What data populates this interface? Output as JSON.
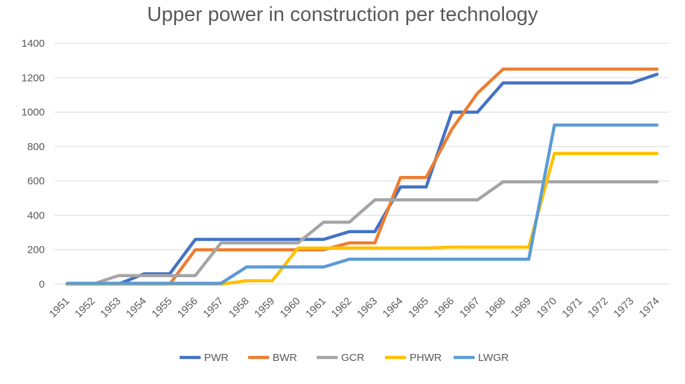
{
  "chart_data": {
    "type": "line",
    "title": "Upper power in construction per technology",
    "xlabel": "",
    "ylabel": "",
    "ylim": [
      0,
      1400
    ],
    "yticks": [
      0,
      200,
      400,
      600,
      800,
      1000,
      1200,
      1400
    ],
    "grid": true,
    "legend_position": "bottom",
    "x": [
      "1951",
      "1952",
      "1953",
      "1954",
      "1955",
      "1956",
      "1957",
      "1958",
      "1959",
      "1960",
      "1961",
      "1962",
      "1963",
      "1964",
      "1965",
      "1966",
      "1967",
      "1968",
      "1969",
      "1970",
      "1971",
      "1972",
      "1973",
      "1974"
    ],
    "series": [
      {
        "name": "PWR",
        "color": "#4472C4",
        "values": [
          0,
          0,
          0,
          60,
          60,
          260,
          260,
          260,
          260,
          260,
          260,
          305,
          305,
          565,
          565,
          1000,
          1000,
          1170,
          1170,
          1170,
          1170,
          1170,
          1170,
          1220
        ]
      },
      {
        "name": "BWR",
        "color": "#ED7D31",
        "values": [
          0,
          0,
          0,
          0,
          0,
          200,
          200,
          200,
          200,
          200,
          200,
          240,
          240,
          620,
          620,
          900,
          1110,
          1250,
          1250,
          1250,
          1250,
          1250,
          1250,
          1250
        ]
      },
      {
        "name": "GCR",
        "color": "#A5A5A5",
        "values": [
          0,
          0,
          50,
          50,
          50,
          50,
          240,
          240,
          240,
          240,
          360,
          360,
          490,
          490,
          490,
          490,
          490,
          595,
          595,
          595,
          595,
          595,
          595,
          595
        ]
      },
      {
        "name": "PHWR",
        "color": "#FFC000",
        "values": [
          0,
          0,
          0,
          0,
          0,
          0,
          0,
          20,
          20,
          210,
          210,
          210,
          210,
          210,
          210,
          215,
          215,
          215,
          215,
          760,
          760,
          760,
          760,
          760
        ]
      },
      {
        "name": "LWGR",
        "color": "#5B9BD5",
        "values": [
          5,
          5,
          5,
          5,
          5,
          5,
          5,
          100,
          100,
          100,
          100,
          145,
          145,
          145,
          145,
          145,
          145,
          145,
          145,
          925,
          925,
          925,
          925,
          925
        ]
      }
    ]
  }
}
